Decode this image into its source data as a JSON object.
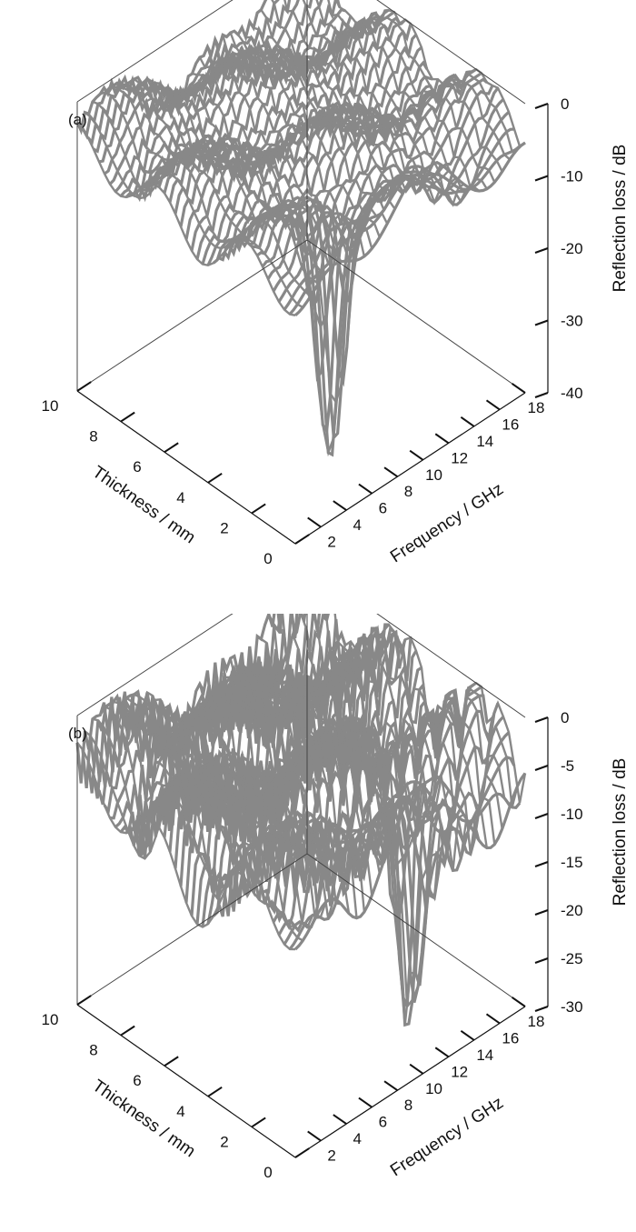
{
  "chart_data": [
    {
      "type": "surface",
      "panel": "(a)",
      "xlabel": "Thickness / mm",
      "ylabel": "Frequency / GHz",
      "zlabel": "Reflection loss / dB",
      "x_ticks": [
        "10",
        "8",
        "6",
        "4",
        "2",
        "0"
      ],
      "y_ticks": [
        "2",
        "4",
        "6",
        "8",
        "10",
        "12",
        "14",
        "16",
        "18"
      ],
      "z_ticks": [
        "0",
        "-10",
        "-20",
        "-30",
        "-40"
      ],
      "xlim": [
        0,
        10
      ],
      "ylim": [
        0,
        18
      ],
      "zlim": [
        -40,
        0
      ],
      "min_rl": -40,
      "color": "#888888"
    },
    {
      "type": "surface",
      "panel": "(b)",
      "xlabel": "Thickness / mm",
      "ylabel": "Frequency / GHz",
      "zlabel": "Reflection loss / dB",
      "x_ticks": [
        "10",
        "8",
        "6",
        "4",
        "2",
        "0"
      ],
      "y_ticks": [
        "2",
        "4",
        "6",
        "8",
        "10",
        "12",
        "14",
        "16",
        "18"
      ],
      "z_ticks": [
        "0",
        "-5",
        "-10",
        "-15",
        "-20",
        "-25",
        "-30"
      ],
      "xlim": [
        0,
        10
      ],
      "ylim": [
        0,
        18
      ],
      "zlim": [
        -30,
        0
      ],
      "min_rl": -30,
      "color": "#888888"
    }
  ]
}
